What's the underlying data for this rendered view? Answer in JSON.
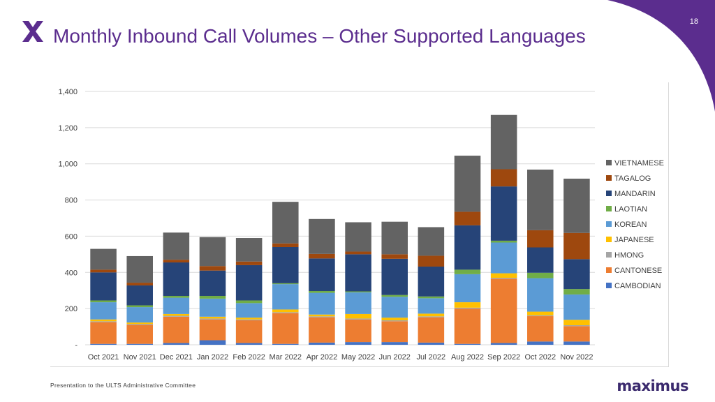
{
  "slide": {
    "page_number": "18",
    "title": "Monthly Inbound Call Volumes – Other Supported Languages",
    "footer": "Presentation to the ULTS Administrative Committee",
    "brand": "maximus",
    "accent_color": "#5b2d8e",
    "corner_color": "#5b2d8e",
    "logo_icon": "x-logo-icon"
  },
  "chart_data": {
    "type": "bar",
    "stacked": true,
    "title": "",
    "xlabel": "",
    "ylabel": "",
    "ylim": [
      0,
      1400
    ],
    "yticks": [
      0,
      200,
      400,
      600,
      800,
      1000,
      1200,
      1400
    ],
    "ytick_labels": [
      "-",
      "200",
      "400",
      "600",
      "800",
      "1,000",
      "1,200",
      "1,400"
    ],
    "grid": true,
    "legend_position": "right",
    "categories": [
      "Oct 2021",
      "Nov 2021",
      "Dec 2021",
      "Jan 2022",
      "Feb 2022",
      "Mar 2022",
      "Apr 2022",
      "May 2022",
      "Jun 2022",
      "Jul 2022",
      "Aug 2022",
      "Sep 2022",
      "Oct 2022",
      "Nov 2022"
    ],
    "series": [
      {
        "name": "CAMBODIAN",
        "color": "#4472c4",
        "values": [
          5,
          5,
          10,
          25,
          10,
          5,
          12,
          15,
          15,
          12,
          5,
          10,
          18,
          18
        ]
      },
      {
        "name": "CANTONESE",
        "color": "#ed7d31",
        "values": [
          120,
          105,
          145,
          115,
          125,
          170,
          140,
          125,
          115,
          140,
          195,
          355,
          140,
          85
        ]
      },
      {
        "name": "HMONG",
        "color": "#a5a5a5",
        "values": [
          5,
          5,
          5,
          5,
          5,
          5,
          5,
          5,
          5,
          5,
          5,
          5,
          5,
          5
        ]
      },
      {
        "name": "JAPANESE",
        "color": "#ffc000",
        "values": [
          10,
          8,
          10,
          10,
          10,
          15,
          10,
          25,
          15,
          15,
          30,
          25,
          20,
          30
        ]
      },
      {
        "name": "KOREAN",
        "color": "#5b9bd5",
        "values": [
          95,
          85,
          90,
          100,
          80,
          140,
          120,
          120,
          115,
          85,
          155,
          170,
          185,
          140
        ]
      },
      {
        "name": "LAOTIAN",
        "color": "#70ad47",
        "values": [
          10,
          10,
          10,
          15,
          15,
          5,
          10,
          5,
          10,
          10,
          25,
          10,
          30,
          30
        ]
      },
      {
        "name": "MANDARIN",
        "color": "#264478",
        "values": [
          155,
          110,
          185,
          140,
          195,
          200,
          180,
          205,
          200,
          165,
          245,
          300,
          140,
          165
        ]
      },
      {
        "name": "LAOTIAN",
        "color": "#70ad47",
        "values": [
          0,
          0,
          0,
          0,
          0,
          0,
          0,
          0,
          0,
          0,
          0,
          0,
          0,
          0
        ]
      },
      {
        "name": "TAGALOG",
        "color": "#9e480e",
        "values": [
          15,
          15,
          15,
          25,
          20,
          20,
          25,
          15,
          25,
          60,
          75,
          95,
          95,
          145
        ]
      },
      {
        "name": "VIETNAMESE",
        "color": "#636363",
        "values": [
          115,
          147,
          150,
          160,
          130,
          230,
          193,
          162,
          180,
          158,
          310,
          300,
          335,
          300
        ]
      }
    ],
    "legend_order": [
      "VIETNAMESE",
      "TAGALOG",
      "MANDARIN",
      "LAOTIAN",
      "KOREAN",
      "JAPANESE",
      "HMONG",
      "CANTONESE",
      "CAMBODIAN"
    ]
  }
}
